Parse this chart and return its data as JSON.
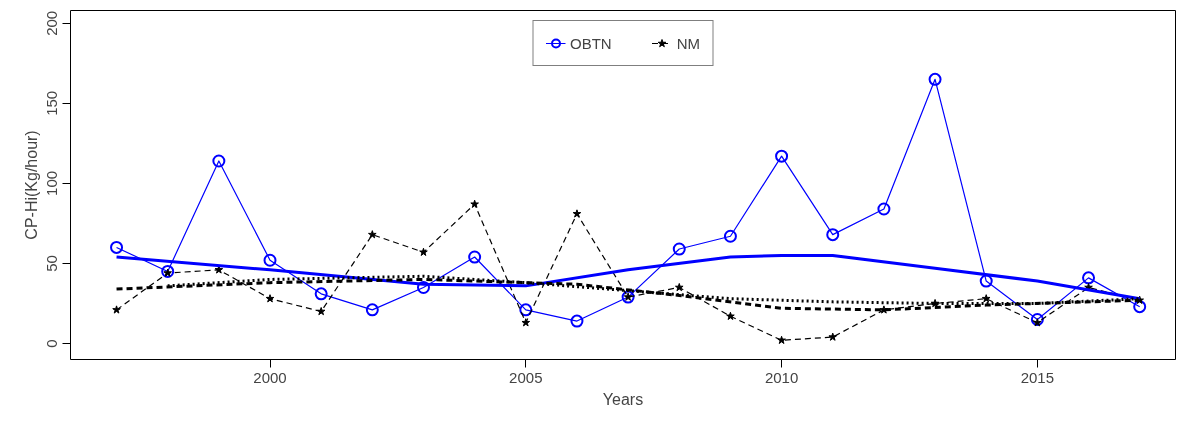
{
  "chart_data": {
    "type": "line",
    "xlabel": "Years",
    "ylabel": "CP-Hi(Kg/hour)",
    "x": [
      1997,
      1998,
      1999,
      2000,
      2001,
      2002,
      2003,
      2004,
      2005,
      2006,
      2007,
      2008,
      2009,
      2010,
      2011,
      2012,
      2013,
      2014,
      2015,
      2016,
      2017
    ],
    "series": [
      {
        "name": "OBTN",
        "color": "#0000ff",
        "marker": "circle",
        "line_style": "solid",
        "values": [
          60,
          45,
          114,
          52,
          31,
          21,
          35,
          54,
          21,
          14,
          29,
          59,
          67,
          117,
          68,
          84,
          165,
          39,
          15,
          41,
          23
        ]
      },
      {
        "name": "NM",
        "color": "#000000",
        "marker": "star",
        "line_style": "dashed",
        "values": [
          21,
          44,
          46,
          28,
          20,
          68,
          57,
          87,
          13,
          81,
          29,
          35,
          17,
          2,
          4,
          21,
          25,
          28,
          13,
          35,
          27
        ]
      },
      {
        "color": "#0000ff",
        "marker": "none",
        "line_style": "solid",
        "x": [
          1997,
          2000,
          2003,
          2005,
          2007,
          2009,
          2010,
          2011,
          2013,
          2015,
          2017
        ],
        "values": [
          54,
          46,
          37,
          36,
          46,
          54,
          55,
          55,
          47,
          39,
          28
        ]
      },
      {
        "color": "#000000",
        "marker": "none",
        "line_style": "dashed",
        "x": [
          1997,
          2000,
          2003,
          2006,
          2008,
          2010,
          2012,
          2014,
          2017
        ],
        "values": [
          34,
          38,
          40,
          37,
          30,
          22,
          21,
          24,
          27
        ]
      },
      {
        "color": "#000000",
        "marker": "none",
        "line_style": "dotted",
        "x": [
          1998,
          2000,
          2003,
          2005,
          2007,
          2009,
          2011,
          2013,
          2015,
          2017
        ],
        "values": [
          36,
          40,
          42,
          38,
          33,
          28,
          26,
          25,
          25,
          28
        ]
      }
    ],
    "xlim": [
      1996.1,
      2017.7
    ],
    "ylim": [
      -10,
      208
    ],
    "xticks": [
      2000,
      2005,
      2010,
      2015
    ],
    "yticks": [
      0,
      50,
      100,
      150,
      200
    ],
    "grid": false,
    "legend": "top"
  }
}
